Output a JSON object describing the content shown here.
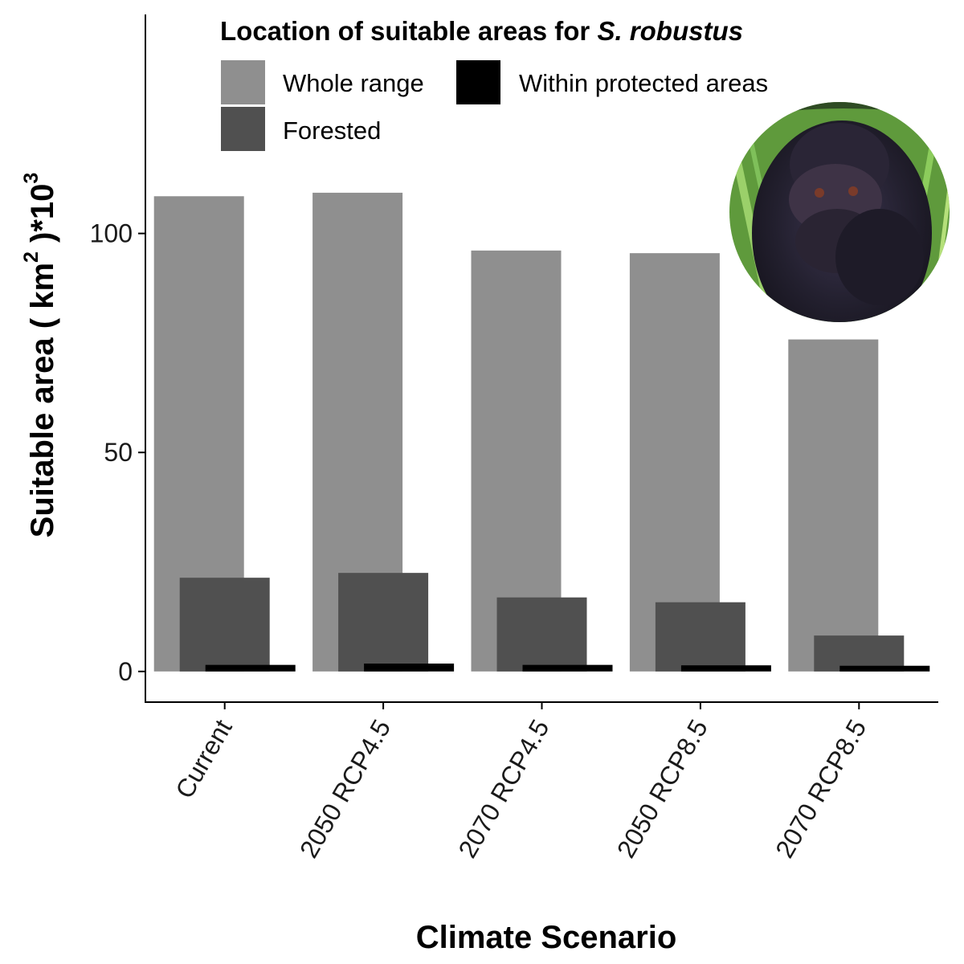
{
  "chart_data": {
    "type": "bar",
    "categories": [
      "Current",
      "2050 RCP4.5",
      "2070 RCP4.5",
      "2050 RCP8.5",
      "2070 RCP8.5"
    ],
    "series": [
      {
        "name": "Whole range",
        "color": "#8f8f8f",
        "values": [
          108.5,
          109.3,
          96.1,
          95.5,
          75.8
        ]
      },
      {
        "name": "Forested",
        "color": "#505050",
        "values": [
          21.4,
          22.5,
          16.9,
          15.8,
          8.2
        ]
      },
      {
        "name": "Within protected areas",
        "color": "#000000",
        "values": [
          1.5,
          1.8,
          1.5,
          1.4,
          1.3
        ]
      }
    ],
    "xlabel": "Climate Scenario",
    "ylabel": "Suitable area ( km^2 )*10^3",
    "ylabel_parts": {
      "pre": "Suitable area ( km",
      "sup1": "2",
      "mid": " )*10",
      "sup2": "3"
    },
    "yticks": [
      0,
      50,
      100
    ],
    "ylim": [
      -7,
      150
    ],
    "grid": false,
    "legend": {
      "title_pre": "Location of suitable areas for ",
      "title_italic": "S. robustus",
      "placement": "top"
    },
    "inset_image": "monkey-photo"
  }
}
